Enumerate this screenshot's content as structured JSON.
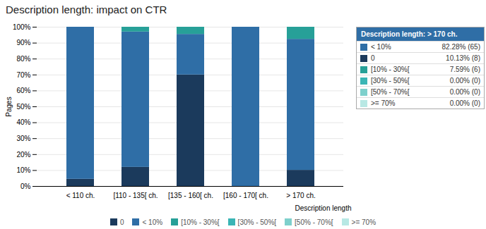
{
  "chart_data": {
    "type": "bar",
    "stacked": true,
    "title": "Description length: impact on CTR",
    "xlabel": "Description length",
    "ylabel": "Pages",
    "categories": [
      "< 110 ch.",
      "[110 - 135[ ch.",
      "[135 - 160[ ch.",
      "[160 - 170[ ch.",
      "> 170 ch."
    ],
    "series": [
      {
        "name": "0",
        "color": "#1b3a5c",
        "values": [
          4.5,
          12.0,
          70.0,
          0,
          10.13
        ]
      },
      {
        "name": "< 10%",
        "color": "#2f6ea6",
        "values": [
          95.5,
          85.0,
          25.5,
          100.0,
          82.28
        ]
      },
      {
        "name": "[10% - 30%[",
        "color": "#27a098",
        "values": [
          0,
          3.0,
          4.5,
          0,
          7.59
        ]
      },
      {
        "name": "[30% - 50%[",
        "color": "#3ab5b5",
        "values": [
          0,
          0,
          0,
          0,
          0
        ]
      },
      {
        "name": "[50% - 70%[",
        "color": "#7ed0cc",
        "values": [
          0,
          0,
          0,
          0,
          0
        ]
      },
      {
        "name": ">= 70%",
        "color": "#b8e8e4",
        "values": [
          0,
          0,
          0,
          0,
          0
        ]
      }
    ],
    "ylim": [
      0,
      100
    ],
    "yticks": [
      {
        "value": 0,
        "label": "0%"
      },
      {
        "value": 10,
        "label": "10%"
      },
      {
        "value": 20,
        "label": "20%"
      },
      {
        "value": 30,
        "label": "30%"
      },
      {
        "value": 40,
        "label": "40%"
      },
      {
        "value": 50,
        "label": "50%"
      },
      {
        "value": 60,
        "label": "60%"
      },
      {
        "value": 70,
        "label": "70%"
      },
      {
        "value": 80,
        "label": "80%"
      },
      {
        "value": 90,
        "label": "90%"
      },
      {
        "value": 100,
        "label": "100%"
      }
    ],
    "grid": true,
    "legend": "bottom",
    "annotations": [
      {
        "title": "Description length: > 170 ch.",
        "entries": [
          {
            "label": "< 10%",
            "text": "82.28% (65)",
            "color": "#2f6ea6"
          },
          {
            "label": "0",
            "text": "10.13% (8)",
            "color": "#1b3a5c"
          },
          {
            "label": "[10% - 30%[",
            "text": "7.59% (6)",
            "color": "#27a098"
          },
          {
            "label": "[30% - 50%[",
            "text": "0.00% (0)",
            "color": "#3ab5b5"
          },
          {
            "label": "[50% - 70%[",
            "text": "0.00% (0)",
            "color": "#7ed0cc"
          },
          {
            "label": ">= 70%",
            "text": "0.00% (0)",
            "color": "#b8e8e4"
          }
        ]
      }
    ]
  }
}
